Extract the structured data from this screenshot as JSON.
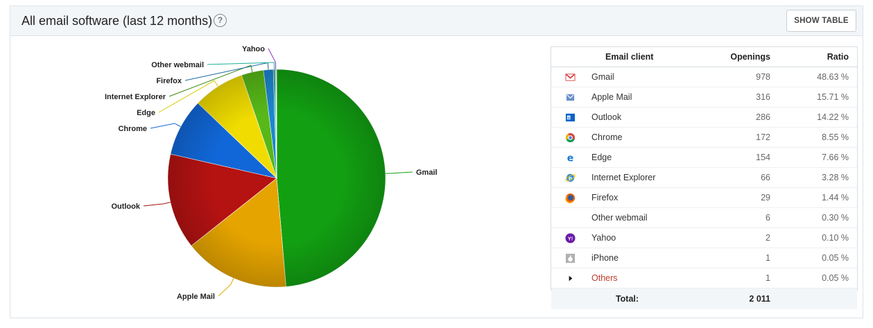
{
  "header": {
    "title": "All email software (last 12 months)",
    "help_glyph": "?",
    "show_table_label": "SHOW TABLE"
  },
  "table": {
    "columns": [
      "Email client",
      "Openings",
      "Ratio"
    ],
    "rows": [
      {
        "icon": "gmail-icon",
        "name": "Gmail",
        "openings": "978",
        "ratio": "48.63 %"
      },
      {
        "icon": "apple-mail-icon",
        "name": "Apple Mail",
        "openings": "316",
        "ratio": "15.71 %"
      },
      {
        "icon": "outlook-icon",
        "name": "Outlook",
        "openings": "286",
        "ratio": "14.22 %"
      },
      {
        "icon": "chrome-icon",
        "name": "Chrome",
        "openings": "172",
        "ratio": "8.55 %"
      },
      {
        "icon": "edge-icon",
        "name": "Edge",
        "openings": "154",
        "ratio": "7.66 %"
      },
      {
        "icon": "internet-explorer-icon",
        "name": "Internet Explorer",
        "openings": "66",
        "ratio": "3.28 %"
      },
      {
        "icon": "firefox-icon",
        "name": "Firefox",
        "openings": "29",
        "ratio": "1.44 %"
      },
      {
        "icon": "",
        "name": "Other webmail",
        "openings": "6",
        "ratio": "0.30 %"
      },
      {
        "icon": "yahoo-icon",
        "name": "Yahoo",
        "openings": "2",
        "ratio": "0.10 %"
      },
      {
        "icon": "iphone-icon",
        "name": "iPhone",
        "openings": "1",
        "ratio": "0.05 %"
      },
      {
        "icon": "expand-arrow-icon",
        "name": "Others",
        "openings": "1",
        "ratio": "0.05 %"
      }
    ],
    "total_label": "Total:",
    "total_value": "2 011"
  },
  "chart_data": {
    "type": "pie",
    "title": "",
    "slices": [
      {
        "label": "Gmail",
        "value": 978,
        "color": "#12a012",
        "leader": "#12a012"
      },
      {
        "label": "Apple Mail",
        "value": 316,
        "color": "#e5a400",
        "leader": "#e0a800"
      },
      {
        "label": "Outlook",
        "value": 286,
        "color": "#b51212",
        "leader": "#a01010"
      },
      {
        "label": "Chrome",
        "value": 172,
        "color": "#1167d8",
        "leader": "#1167d8"
      },
      {
        "label": "Edge",
        "value": 154,
        "color": "#f0dc00",
        "leader": "#d8c800"
      },
      {
        "label": "Internet Explorer",
        "value": 66,
        "color": "#58b818",
        "leader": "#3b8a10"
      },
      {
        "label": "Firefox",
        "value": 29,
        "color": "#1d86cf",
        "leader": "#1d6aa0"
      },
      {
        "label": "Other webmail",
        "value": 6,
        "color": "#1ab09a",
        "leader": "#1ab09a"
      },
      {
        "label": "Yahoo",
        "value": 2,
        "color": "#8a3ac8",
        "leader": "#8a3ac8"
      },
      {
        "label": "iPhone",
        "value": 1,
        "color": "#999999",
        "leader": "#999999"
      },
      {
        "label": "Others",
        "value": 1,
        "color": "#cccccc",
        "leader": "#cccccc"
      }
    ]
  }
}
